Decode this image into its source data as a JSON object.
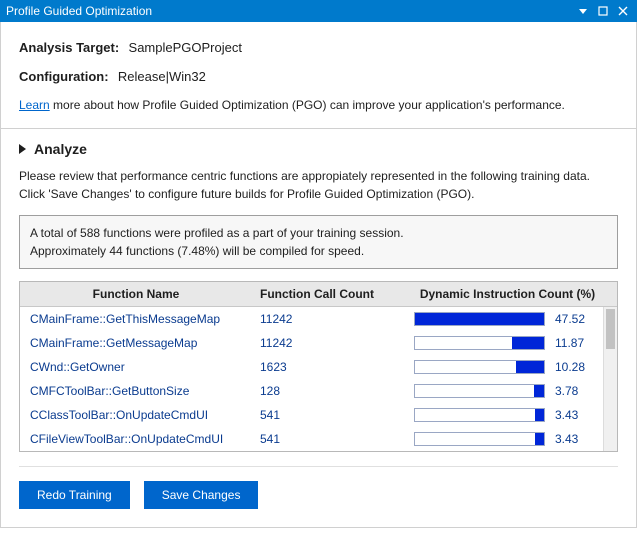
{
  "titlebar": {
    "title": "Profile Guided Optimization"
  },
  "header": {
    "target_label": "Analysis Target:",
    "target_value": "SamplePGOProject",
    "config_label": "Configuration:",
    "config_value": "Release|Win32",
    "learn_link": "Learn",
    "learn_text": " more about how Profile Guided Optimization (PGO) can improve your application's performance."
  },
  "analyze": {
    "title": "Analyze",
    "desc_line1": "Please review that performance centric functions are appropiately represented in the following training data.",
    "desc_line2": "Click 'Save Changes' to configure future builds for Profile Guided Optimization (PGO).",
    "summary_line1": "A total of 588 functions were profiled as a part of your training session.",
    "summary_line2": "Approximately 44 functions (7.48%) will be compiled for speed."
  },
  "table": {
    "columns": {
      "name": "Function Name",
      "count": "Function Call Count",
      "dyn": "Dynamic Instruction Count (%)"
    },
    "bar_max": 47.52,
    "bar_border": "#9aa7c4",
    "bar_fill": "#0026d8",
    "link_color": "#0a3b8f",
    "rows": [
      {
        "name": "CMainFrame::GetThisMessageMap",
        "count": "11242",
        "dyn": 47.52
      },
      {
        "name": "CMainFrame::GetMessageMap",
        "count": "11242",
        "dyn": 11.87
      },
      {
        "name": "CWnd::GetOwner",
        "count": "1623",
        "dyn": 10.28
      },
      {
        "name": "CMFCToolBar::GetButtonSize",
        "count": "128",
        "dyn": 3.78
      },
      {
        "name": "CClassToolBar::OnUpdateCmdUI",
        "count": "541",
        "dyn": 3.43
      },
      {
        "name": "CFileViewToolBar::OnUpdateCmdUI",
        "count": "541",
        "dyn": 3.43
      }
    ]
  },
  "buttons": {
    "redo": "Redo Training",
    "save": "Save Changes"
  },
  "colors": {
    "accent": "#007acc",
    "button": "#0066cc",
    "link": "#0066cc"
  }
}
